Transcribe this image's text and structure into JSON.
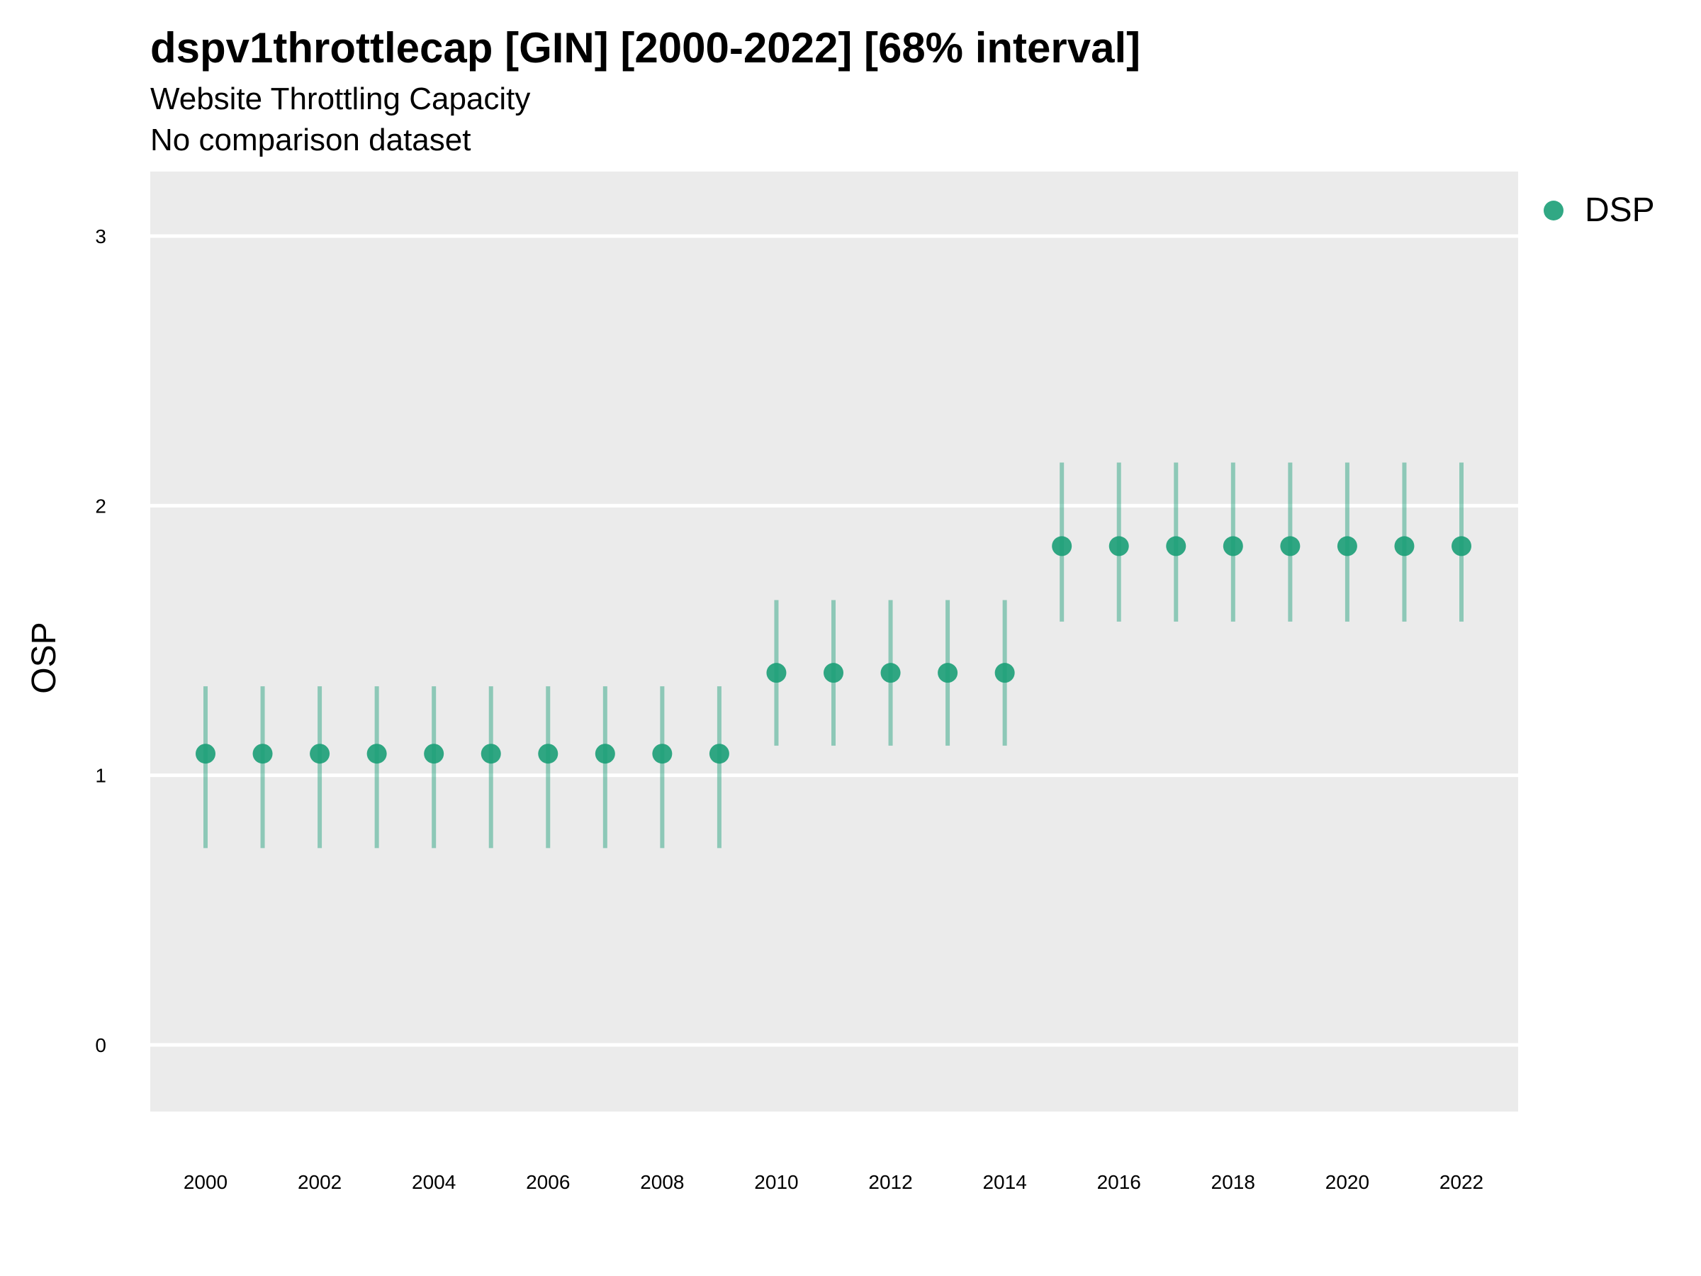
{
  "header": {
    "title": "dspv1throttlecap [GIN] [2000-2022] [68% interval]",
    "subtitle": "Website Throttling Capacity",
    "caption": "No comparison dataset"
  },
  "legend": {
    "label": "DSP",
    "color": "#1b9e77"
  },
  "chart_data": {
    "type": "scatter",
    "ylabel": "OSP",
    "xlabel": "",
    "ylim": [
      -0.25,
      3.25
    ],
    "xlim": [
      1999,
      2023
    ],
    "yticks": [
      "0",
      "1",
      "2",
      "3"
    ],
    "xticks": [
      "2000",
      "2002",
      "2004",
      "2006",
      "2008",
      "2010",
      "2012",
      "2014",
      "2016",
      "2018",
      "2020",
      "2022"
    ],
    "grid": true,
    "legend_position": "top-right",
    "series": [
      {
        "name": "DSP",
        "color": "#1b9e77",
        "x": [
          2000,
          2001,
          2002,
          2003,
          2004,
          2005,
          2006,
          2007,
          2008,
          2009,
          2010,
          2011,
          2012,
          2013,
          2014,
          2015,
          2016,
          2017,
          2018,
          2019,
          2020,
          2021,
          2022
        ],
        "y": [
          1.08,
          1.08,
          1.08,
          1.08,
          1.08,
          1.08,
          1.08,
          1.08,
          1.08,
          1.08,
          1.38,
          1.38,
          1.38,
          1.38,
          1.38,
          1.85,
          1.85,
          1.85,
          1.85,
          1.85,
          1.85,
          1.85,
          1.85
        ],
        "lower": [
          0.73,
          0.73,
          0.73,
          0.73,
          0.73,
          0.73,
          0.73,
          0.73,
          0.73,
          0.73,
          1.11,
          1.11,
          1.11,
          1.11,
          1.11,
          1.57,
          1.57,
          1.57,
          1.57,
          1.57,
          1.57,
          1.57,
          1.57
        ],
        "upper": [
          1.33,
          1.33,
          1.33,
          1.33,
          1.33,
          1.33,
          1.33,
          1.33,
          1.33,
          1.33,
          1.65,
          1.65,
          1.65,
          1.65,
          1.65,
          2.16,
          2.16,
          2.16,
          2.16,
          2.16,
          2.16,
          2.16,
          2.16
        ]
      }
    ]
  }
}
